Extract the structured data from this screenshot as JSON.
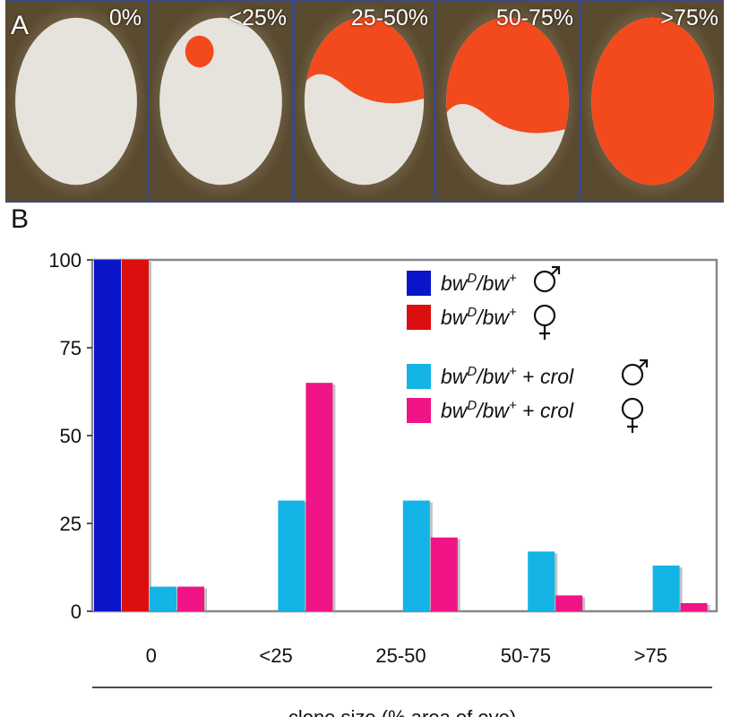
{
  "panel_a": {
    "letter": "A",
    "photos": [
      {
        "label": "0%",
        "red_fraction": 0.0
      },
      {
        "label": "<25%",
        "red_fraction": 0.05
      },
      {
        "label": "25-50%",
        "red_fraction": 0.45
      },
      {
        "label": "50-75%",
        "red_fraction": 0.7
      },
      {
        "label": ">75%",
        "red_fraction": 1.0
      }
    ]
  },
  "panel_b": {
    "letter": "B"
  },
  "colors": {
    "photo_border": "#3b4a86",
    "eye_white": "#e6e3dc",
    "eye_red": "#f24a1d",
    "background_fly": "#8c7a52"
  },
  "chart_data": {
    "type": "bar",
    "categories": [
      "0",
      "<25",
      "25-50",
      "50-75",
      ">75"
    ],
    "series": [
      {
        "name": "bwD/bw+ male",
        "display": {
          "base": "bw",
          "sup1": "D",
          "mid": "/bw",
          "sup2": "+",
          "extra": "",
          "sex": "male"
        },
        "color": "#0a14c8",
        "values": [
          100,
          0,
          0,
          0,
          0
        ]
      },
      {
        "name": "bwD/bw+ female",
        "display": {
          "base": "bw",
          "sup1": "D",
          "mid": "/bw",
          "sup2": "+",
          "extra": "",
          "sex": "female"
        },
        "color": "#dc0f0f",
        "values": [
          100,
          0,
          0,
          0,
          0
        ]
      },
      {
        "name": "bwD/bw+ + crol male",
        "display": {
          "base": "bw",
          "sup1": "D",
          "mid": "/bw",
          "sup2": "+",
          "extra": " + crol",
          "sex": "male"
        },
        "color": "#14b4e6",
        "values": [
          7,
          31.5,
          31.5,
          17,
          13
        ]
      },
      {
        "name": "bwD/bw+ + crol female",
        "display": {
          "base": "bw",
          "sup1": "D",
          "mid": "/bw",
          "sup2": "+",
          "extra": " + crol",
          "sex": "female"
        },
        "color": "#f01487",
        "values": [
          7,
          65,
          21,
          4.5,
          2.3
        ]
      }
    ],
    "yticks": [
      0,
      25,
      50,
      75,
      100
    ],
    "ylim": [
      0,
      100
    ],
    "xlabel": "clone size (% area of eye)",
    "ylabel": "",
    "grid": false,
    "legend_position": "top-right"
  }
}
